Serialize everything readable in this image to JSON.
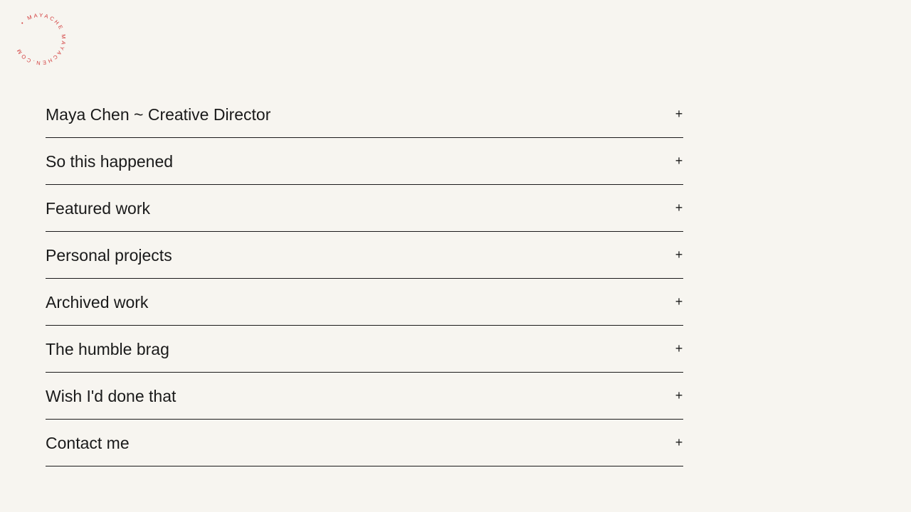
{
  "logo": {
    "text": "• MAYACHE MAYACHEN.COM",
    "color": "#d23a3a"
  },
  "accordion": {
    "items": [
      {
        "label": "Maya Chen ~ Creative Director",
        "icon": "+"
      },
      {
        "label": "So this happened",
        "icon": "+"
      },
      {
        "label": "Featured work",
        "icon": "+"
      },
      {
        "label": "Personal projects",
        "icon": "+"
      },
      {
        "label": "Archived work",
        "icon": "+"
      },
      {
        "label": "The humble brag",
        "icon": "+"
      },
      {
        "label": "Wish I'd done that",
        "icon": "+"
      },
      {
        "label": "Contact me",
        "icon": "+"
      }
    ]
  }
}
